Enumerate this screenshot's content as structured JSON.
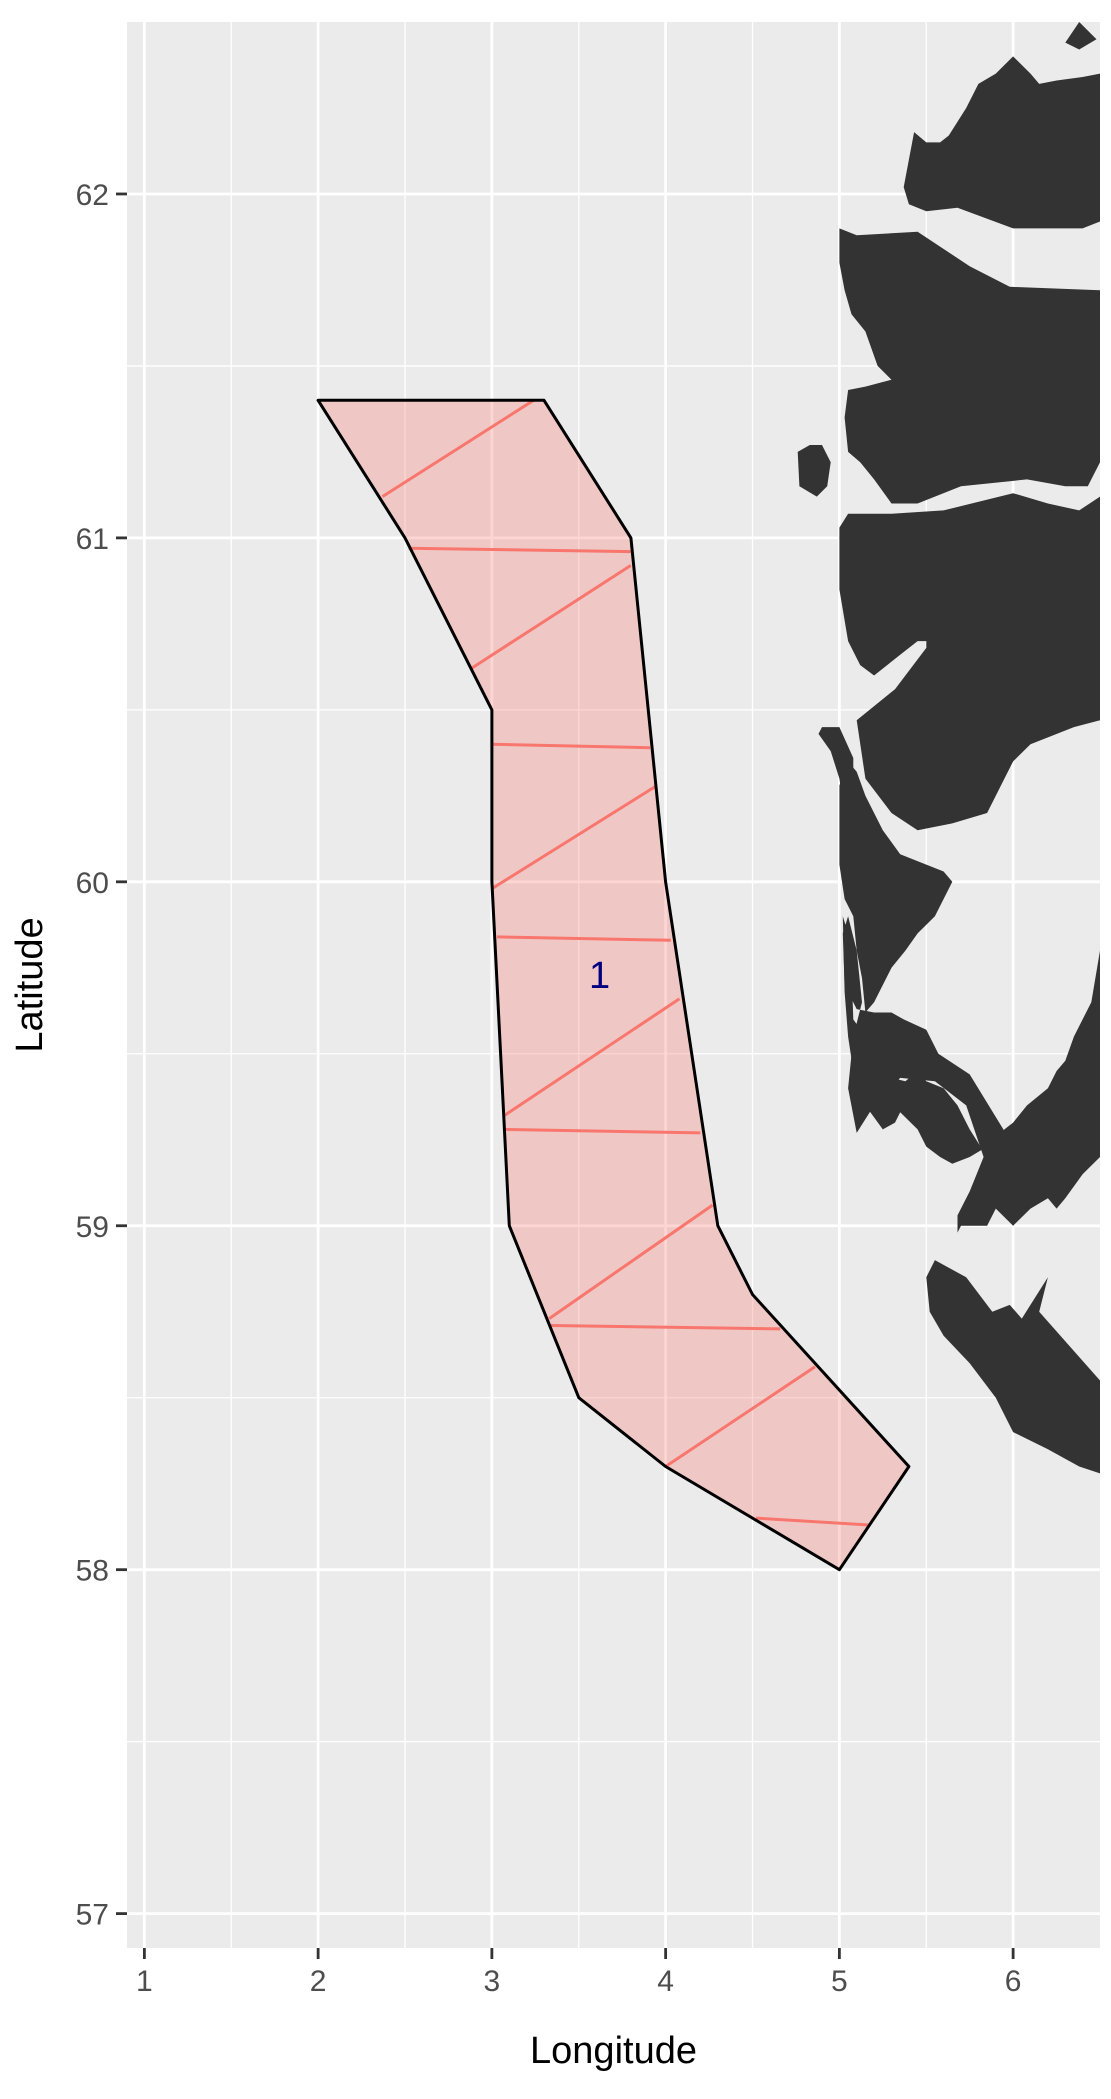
{
  "chart_data": {
    "type": "map",
    "xlabel": "Longitude",
    "ylabel": "Latitude",
    "xlim": [
      0.9,
      6.5
    ],
    "ylim": [
      56.9,
      62.5
    ],
    "x_ticks": [
      1,
      2,
      3,
      4,
      5,
      6
    ],
    "y_ticks": [
      57,
      58,
      59,
      60,
      61,
      62
    ],
    "x_tick_labels": [
      "1",
      "2",
      "3",
      "4",
      "5",
      "6"
    ],
    "y_tick_labels": [
      "57",
      "58",
      "59",
      "60",
      "61",
      "62"
    ],
    "grid": true,
    "colors": {
      "panel": "#ebebeb",
      "grid": "#ffffff",
      "land": "#333333",
      "region_fill": "#f8766d",
      "region_fill_opacity": 0.3,
      "hatch": "#f8766d",
      "region_outline": "#000000",
      "label": "#000080"
    },
    "region": {
      "label": "1",
      "label_position": [
        3.62,
        59.72
      ],
      "polygon": [
        [
          2.0,
          61.4
        ],
        [
          3.3,
          61.4
        ],
        [
          3.8,
          61.0
        ],
        [
          4.0,
          60.0
        ],
        [
          4.3,
          59.0
        ],
        [
          4.5,
          58.8
        ],
        [
          5.4,
          58.3
        ],
        [
          5.0,
          58.0
        ],
        [
          4.0,
          58.3
        ],
        [
          3.5,
          58.5
        ],
        [
          3.1,
          59.0
        ],
        [
          3.0,
          60.0
        ],
        [
          3.0,
          60.5
        ],
        [
          2.5,
          61.0
        ],
        [
          2.0,
          61.4
        ]
      ],
      "hatch_lines": [
        [
          [
            2.37,
            61.12
          ],
          [
            3.24,
            61.4
          ]
        ],
        [
          [
            2.52,
            60.97
          ],
          [
            3.8,
            60.96
          ]
        ],
        [
          [
            2.88,
            60.62
          ],
          [
            3.8,
            60.92
          ]
        ],
        [
          [
            3.0,
            60.4
          ],
          [
            3.91,
            60.39
          ]
        ],
        [
          [
            3.0,
            59.98
          ],
          [
            3.95,
            60.28
          ]
        ],
        [
          [
            3.03,
            59.84
          ],
          [
            4.03,
            59.83
          ]
        ],
        [
          [
            3.07,
            59.32
          ],
          [
            4.08,
            59.66
          ]
        ],
        [
          [
            3.08,
            59.28
          ],
          [
            4.2,
            59.27
          ]
        ],
        [
          [
            3.33,
            58.73
          ],
          [
            4.27,
            59.06
          ]
        ],
        [
          [
            3.34,
            58.71
          ],
          [
            4.66,
            58.7
          ]
        ],
        [
          [
            4.0,
            58.3
          ],
          [
            4.86,
            58.59
          ]
        ],
        [
          [
            4.52,
            58.15
          ],
          [
            5.17,
            58.13
          ]
        ],
        [
          [
            5.17,
            58.13
          ],
          [
            5.17,
            58.13
          ]
        ]
      ]
    },
    "land": [
      [
        [
          6.2,
          62.5
        ],
        [
          6.5,
          62.5
        ],
        [
          6.5,
          62.35
        ],
        [
          6.4,
          62.34
        ],
        [
          6.25,
          62.33
        ],
        [
          6.15,
          62.32
        ],
        [
          6.1,
          62.35
        ],
        [
          6.0,
          62.4
        ],
        [
          5.9,
          62.35
        ],
        [
          5.8,
          62.32
        ],
        [
          5.73,
          62.25
        ],
        [
          5.63,
          62.17
        ],
        [
          5.58,
          62.15
        ],
        [
          5.5,
          62.15
        ],
        [
          5.43,
          62.18
        ],
        [
          5.4,
          62.1
        ],
        [
          5.37,
          62.02
        ],
        [
          5.4,
          61.97
        ],
        [
          5.5,
          61.95
        ],
        [
          5.68,
          61.96
        ],
        [
          6.0,
          61.9
        ],
        [
          6.2,
          61.9
        ],
        [
          6.4,
          61.9
        ],
        [
          6.5,
          61.92
        ],
        [
          6.5,
          62.5
        ]
      ],
      [
        [
          6.38,
          62.5
        ],
        [
          6.48,
          62.45
        ],
        [
          6.38,
          62.42
        ],
        [
          6.3,
          62.44
        ],
        [
          6.38,
          62.5
        ]
      ],
      [
        [
          5.0,
          61.9
        ],
        [
          5.1,
          61.88
        ],
        [
          5.45,
          61.89
        ],
        [
          5.75,
          61.79
        ],
        [
          5.98,
          61.73
        ],
        [
          6.5,
          61.72
        ],
        [
          6.5,
          61.22
        ],
        [
          6.43,
          61.15
        ],
        [
          6.3,
          61.15
        ],
        [
          6.08,
          61.17
        ],
        [
          5.7,
          61.15
        ],
        [
          5.45,
          61.1
        ],
        [
          5.3,
          61.1
        ],
        [
          5.2,
          61.17
        ],
        [
          5.12,
          61.22
        ],
        [
          5.05,
          61.25
        ],
        [
          5.03,
          61.35
        ],
        [
          5.05,
          61.43
        ],
        [
          5.15,
          61.44
        ],
        [
          5.3,
          61.46
        ],
        [
          5.22,
          61.5
        ],
        [
          5.15,
          61.6
        ],
        [
          5.07,
          61.65
        ],
        [
          5.03,
          61.72
        ],
        [
          5.0,
          61.8
        ],
        [
          5.0,
          61.9
        ]
      ],
      [
        [
          4.76,
          61.25
        ],
        [
          4.77,
          61.15
        ],
        [
          4.87,
          61.12
        ],
        [
          4.93,
          61.15
        ],
        [
          4.95,
          61.22
        ],
        [
          4.9,
          61.27
        ],
        [
          4.83,
          61.27
        ],
        [
          4.76,
          61.25
        ]
      ],
      [
        [
          5.0,
          61.03
        ],
        [
          5.0,
          60.85
        ],
        [
          5.05,
          60.7
        ],
        [
          5.12,
          60.63
        ],
        [
          5.2,
          60.6
        ],
        [
          5.35,
          60.66
        ],
        [
          5.45,
          60.7
        ],
        [
          5.5,
          60.7
        ],
        [
          5.5,
          60.68
        ],
        [
          5.32,
          60.56
        ],
        [
          5.1,
          60.47
        ],
        [
          5.15,
          60.3
        ],
        [
          5.3,
          60.2
        ],
        [
          5.45,
          60.15
        ],
        [
          5.65,
          60.17
        ],
        [
          5.85,
          60.2
        ],
        [
          6.0,
          60.35
        ],
        [
          6.1,
          60.4
        ],
        [
          6.35,
          60.45
        ],
        [
          6.5,
          60.47
        ],
        [
          6.5,
          61.12
        ],
        [
          6.38,
          61.08
        ],
        [
          6.2,
          61.1
        ],
        [
          6.0,
          61.13
        ],
        [
          5.6,
          61.08
        ],
        [
          5.3,
          61.07
        ],
        [
          5.05,
          61.07
        ],
        [
          5.0,
          61.03
        ]
      ],
      [
        [
          4.88,
          60.43
        ],
        [
          4.95,
          60.38
        ],
        [
          5.0,
          60.3
        ],
        [
          5.03,
          60.2
        ],
        [
          5.05,
          60.2
        ],
        [
          5.08,
          60.2
        ],
        [
          5.08,
          60.36
        ],
        [
          5.0,
          60.45
        ],
        [
          4.9,
          60.45
        ],
        [
          4.88,
          60.43
        ]
      ],
      [
        [
          5.02,
          59.85
        ],
        [
          5.03,
          59.7
        ],
        [
          5.1,
          59.63
        ],
        [
          5.2,
          59.62
        ],
        [
          5.3,
          59.62
        ],
        [
          5.37,
          59.6
        ],
        [
          5.5,
          59.57
        ],
        [
          5.57,
          59.5
        ],
        [
          5.75,
          59.44
        ],
        [
          5.98,
          59.25
        ],
        [
          6.1,
          59.25
        ],
        [
          6.1,
          59.2
        ],
        [
          6.0,
          59.1
        ],
        [
          5.9,
          59.05
        ],
        [
          5.85,
          59.0
        ],
        [
          5.7,
          59.0
        ],
        [
          5.68,
          58.98
        ],
        [
          5.68,
          59.03
        ],
        [
          5.75,
          59.1
        ],
        [
          5.83,
          59.2
        ],
        [
          5.73,
          59.35
        ],
        [
          5.55,
          59.42
        ],
        [
          5.35,
          59.43
        ],
        [
          5.2,
          59.35
        ],
        [
          5.1,
          59.27
        ],
        [
          5.05,
          59.4
        ],
        [
          5.08,
          59.55
        ],
        [
          5.13,
          59.65
        ],
        [
          5.1,
          59.8
        ],
        [
          5.05,
          59.9
        ],
        [
          5.02,
          59.85
        ]
      ],
      [
        [
          5.02,
          59.9
        ],
        [
          5.05,
          59.85
        ],
        [
          5.07,
          59.75
        ],
        [
          5.08,
          59.6
        ],
        [
          5.15,
          59.55
        ],
        [
          5.25,
          59.5
        ],
        [
          5.3,
          59.43
        ],
        [
          5.38,
          59.42
        ],
        [
          5.45,
          59.45
        ],
        [
          5.5,
          59.42
        ],
        [
          5.6,
          59.4
        ],
        [
          5.68,
          59.35
        ],
        [
          5.75,
          59.28
        ],
        [
          5.85,
          59.2
        ],
        [
          5.9,
          59.05
        ],
        [
          6.0,
          59.0
        ],
        [
          6.1,
          59.05
        ],
        [
          6.2,
          59.08
        ],
        [
          6.25,
          59.05
        ],
        [
          6.3,
          59.08
        ],
        [
          6.4,
          59.15
        ],
        [
          6.5,
          59.2
        ],
        [
          6.5,
          59.8
        ],
        [
          6.45,
          59.65
        ],
        [
          6.35,
          59.55
        ],
        [
          6.3,
          59.48
        ],
        [
          6.25,
          59.45
        ],
        [
          6.2,
          59.4
        ],
        [
          6.08,
          59.35
        ],
        [
          6.0,
          59.3
        ],
        [
          5.95,
          59.28
        ],
        [
          5.85,
          59.23
        ],
        [
          5.75,
          59.2
        ],
        [
          5.65,
          59.18
        ],
        [
          5.58,
          59.2
        ],
        [
          5.5,
          59.23
        ],
        [
          5.45,
          59.28
        ],
        [
          5.35,
          59.33
        ],
        [
          5.32,
          59.3
        ],
        [
          5.25,
          59.28
        ],
        [
          5.15,
          59.35
        ],
        [
          5.08,
          59.45
        ],
        [
          5.05,
          59.55
        ],
        [
          5.03,
          59.68
        ],
        [
          5.02,
          59.9
        ]
      ],
      [
        [
          5.5,
          58.85
        ],
        [
          5.55,
          58.9
        ],
        [
          5.73,
          58.85
        ],
        [
          5.88,
          58.75
        ],
        [
          5.98,
          58.77
        ],
        [
          6.05,
          58.73
        ],
        [
          6.2,
          58.85
        ],
        [
          6.15,
          58.75
        ],
        [
          6.5,
          58.55
        ],
        [
          6.5,
          58.28
        ],
        [
          6.38,
          58.3
        ],
        [
          6.2,
          58.35
        ],
        [
          6.0,
          58.4
        ],
        [
          5.9,
          58.5
        ],
        [
          5.75,
          58.6
        ],
        [
          5.6,
          58.68
        ],
        [
          5.52,
          58.75
        ],
        [
          5.5,
          58.85
        ]
      ],
      [
        [
          5.0,
          60.28
        ],
        [
          5.05,
          60.35
        ],
        [
          5.1,
          60.32
        ],
        [
          5.15,
          60.25
        ],
        [
          5.25,
          60.15
        ],
        [
          5.35,
          60.08
        ],
        [
          5.5,
          60.05
        ],
        [
          5.6,
          60.03
        ],
        [
          5.65,
          60.0
        ],
        [
          5.6,
          59.95
        ],
        [
          5.55,
          59.9
        ],
        [
          5.45,
          59.85
        ],
        [
          5.38,
          59.8
        ],
        [
          5.3,
          59.75
        ],
        [
          5.25,
          59.7
        ],
        [
          5.2,
          59.65
        ],
        [
          5.15,
          59.62
        ],
        [
          5.13,
          59.72
        ],
        [
          5.1,
          59.8
        ],
        [
          5.08,
          59.9
        ],
        [
          5.03,
          59.95
        ],
        [
          5.0,
          60.05
        ],
        [
          5.0,
          60.28
        ]
      ]
    ]
  }
}
